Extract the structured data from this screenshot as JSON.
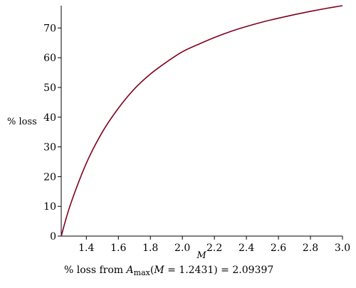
{
  "chart_data": {
    "type": "line",
    "xlabel": "M",
    "ylabel": "% loss",
    "xlim": [
      1.2431,
      3.0
    ],
    "ylim": [
      0,
      77.5
    ],
    "x_ticks": [
      "1.4",
      "1.6",
      "1.8",
      "2.0",
      "2.2",
      "2.4",
      "2.6",
      "2.8",
      "3.0"
    ],
    "y_ticks": [
      "0",
      "10",
      "20",
      "30",
      "40",
      "50",
      "60",
      "70"
    ],
    "series": [
      {
        "color": "#800020",
        "x": [
          1.2431,
          1.3,
          1.4,
          1.5,
          1.6,
          1.7,
          1.8,
          1.9,
          2.0,
          2.1,
          2.2,
          2.3,
          2.4,
          2.5,
          2.6,
          2.7,
          2.8,
          2.9,
          3.0
        ],
        "y": [
          0,
          10.5,
          24.5,
          35.0,
          43.0,
          49.5,
          54.5,
          58.5,
          62.0,
          64.5,
          66.8,
          68.8,
          70.5,
          72.0,
          73.3,
          74.5,
          75.6,
          76.6,
          77.5
        ]
      }
    ],
    "grid": false,
    "legend": "none"
  },
  "caption": {
    "prefix": "% loss from ",
    "a": "A",
    "sub": "max",
    "open": "(",
    "m": "M",
    "mid": " = 1.2431) = 2.09397"
  }
}
